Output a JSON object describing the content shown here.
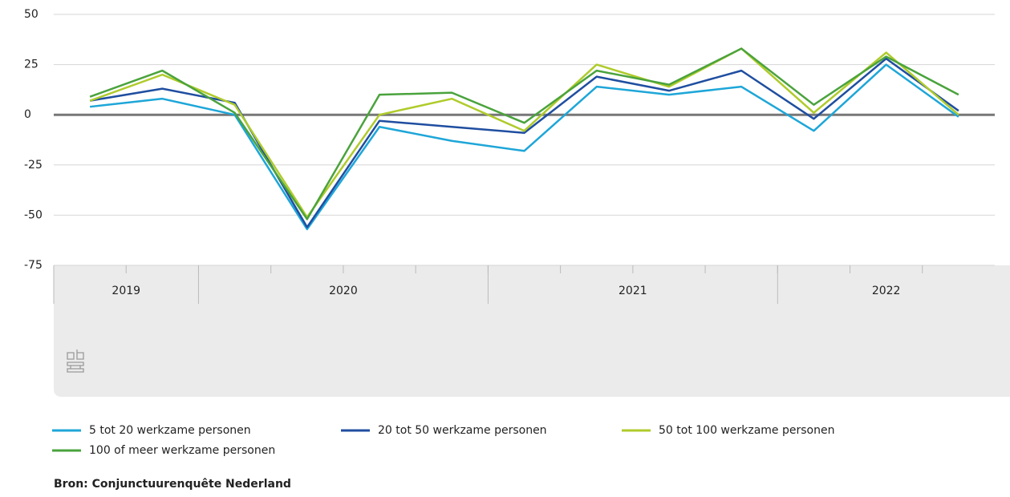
{
  "chart_data": {
    "type": "line",
    "categories": [
      null,
      null,
      null,
      null,
      null,
      null,
      null,
      null,
      null,
      null,
      null,
      null,
      null
    ],
    "x_groups": [
      {
        "label": "2019",
        "count": 2
      },
      {
        "label": "2020",
        "count": 4
      },
      {
        "label": "2021",
        "count": 4
      },
      {
        "label": "2022",
        "count": 3
      }
    ],
    "series": [
      {
        "name": "5 tot 20 werkzame personen",
        "color": "#1ea6d8",
        "values": [
          4,
          8,
          0,
          -57,
          -6,
          -13,
          -18,
          14,
          10,
          14,
          -8,
          25,
          -1
        ]
      },
      {
        "name": "20 tot 50 werkzame personen",
        "color": "#1f4ea0",
        "values": [
          7,
          13,
          6,
          -56,
          -3,
          -6,
          -9,
          19,
          12,
          22,
          -2,
          28,
          2
        ]
      },
      {
        "name": "50 tot 100 werkzame personen",
        "color": "#afcb2b",
        "values": [
          7,
          20,
          5,
          -51,
          0,
          8,
          -8,
          25,
          14,
          33,
          1,
          31,
          0
        ]
      },
      {
        "name": "100 of meer werkzame personen",
        "color": "#4aa33c",
        "values": [
          9,
          22,
          1,
          -52,
          10,
          11,
          -4,
          22,
          15,
          33,
          5,
          29,
          10
        ]
      }
    ],
    "ylim": [
      -75,
      50
    ],
    "yticks": [
      -75,
      -50,
      -25,
      0,
      25,
      50
    ],
    "grid": true,
    "source": "Bron: Conjunctuurenquête Nederland"
  }
}
